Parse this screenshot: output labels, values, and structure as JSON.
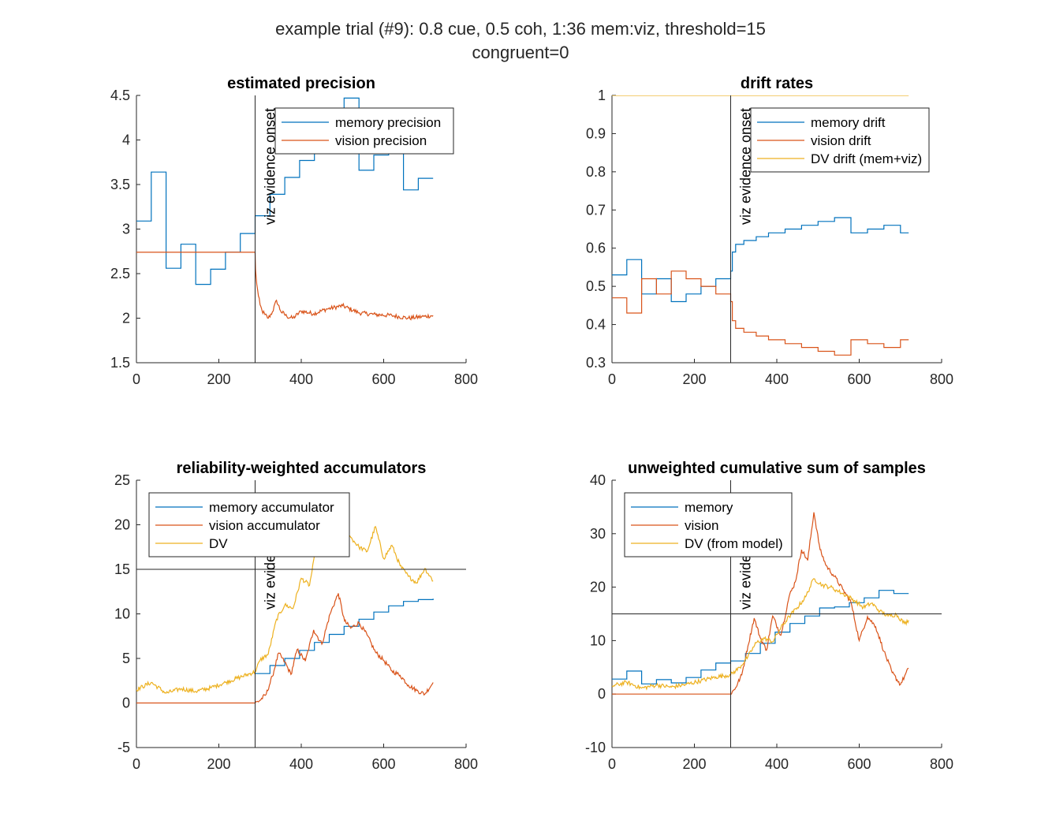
{
  "figure": {
    "title_line1": "example trial (#9): 0.8 cue, 0.5 coh, 1:36 mem:viz, threshold=15",
    "title_line2": "congruent=0"
  },
  "colors": {
    "memory": "#0072BD",
    "vision": "#D95319",
    "dv": "#EDB120",
    "axis": "#262626",
    "ref": "#262626"
  },
  "chart_data": [
    {
      "type": "line",
      "title": "estimated precision",
      "xlim": [
        0,
        800
      ],
      "ylim": [
        1.5,
        4.5
      ],
      "xticks": [
        0,
        200,
        400,
        600,
        800
      ],
      "yticks": [
        1.5,
        2,
        2.5,
        3,
        3.5,
        4,
        4.5
      ],
      "ytick_labels": [
        "1.5",
        "2",
        "2.5",
        "3",
        "3.5",
        "4",
        "4.5"
      ],
      "vline": {
        "x": 288,
        "label": "viz evidence onset"
      },
      "legend": {
        "position": "top-right",
        "entries": [
          "memory precision",
          "vision precision"
        ]
      },
      "series": [
        {
          "name": "memory precision",
          "color_key": "memory",
          "style": "step",
          "x": [
            0,
            36,
            72,
            108,
            144,
            180,
            216,
            252,
            288,
            324,
            360,
            396,
            432,
            468,
            504,
            540,
            576,
            612,
            648,
            684,
            720
          ],
          "y": [
            3.09,
            3.64,
            2.56,
            2.83,
            2.38,
            2.55,
            2.74,
            2.95,
            3.15,
            3.39,
            3.58,
            3.77,
            3.97,
            4.1,
            4.47,
            3.66,
            3.83,
            4.0,
            3.44,
            3.57,
            3.57
          ]
        },
        {
          "name": "vision precision",
          "color_key": "vision",
          "style": "noisy",
          "x": [
            0,
            288,
            289,
            292,
            296,
            300,
            305,
            312,
            320,
            330,
            340,
            350,
            365,
            380,
            400,
            430,
            460,
            500,
            540,
            580,
            620,
            660,
            700,
            720
          ],
          "y": [
            2.74,
            2.74,
            2.55,
            2.38,
            2.25,
            2.15,
            2.08,
            2.04,
            2.0,
            2.07,
            2.2,
            2.08,
            2.02,
            2.0,
            2.08,
            2.05,
            2.1,
            2.14,
            2.06,
            2.04,
            2.03,
            2.0,
            2.02,
            2.03
          ]
        }
      ]
    },
    {
      "type": "line",
      "title": "drift rates",
      "xlim": [
        0,
        800
      ],
      "ylim": [
        0.3,
        1
      ],
      "xticks": [
        0,
        200,
        400,
        600,
        800
      ],
      "yticks": [
        0.3,
        0.4,
        0.5,
        0.6,
        0.7,
        0.8,
        0.9,
        1
      ],
      "ytick_labels": [
        "0.3",
        "0.4",
        "0.5",
        "0.6",
        "0.7",
        "0.8",
        "0.9",
        "1"
      ],
      "vline": {
        "x": 288,
        "label": "viz evidence onset"
      },
      "legend": {
        "position": "top-right",
        "entries": [
          "memory drift",
          "vision drift",
          "DV drift (mem+viz)"
        ]
      },
      "series": [
        {
          "name": "memory drift",
          "color_key": "memory",
          "style": "step",
          "x": [
            0,
            36,
            72,
            108,
            144,
            180,
            216,
            252,
            288,
            292,
            300,
            320,
            350,
            380,
            420,
            460,
            500,
            540,
            580,
            620,
            660,
            700,
            720
          ],
          "y": [
            0.53,
            0.57,
            0.48,
            0.52,
            0.46,
            0.48,
            0.5,
            0.52,
            0.54,
            0.59,
            0.61,
            0.62,
            0.63,
            0.64,
            0.65,
            0.66,
            0.67,
            0.68,
            0.64,
            0.65,
            0.66,
            0.64,
            0.64
          ]
        },
        {
          "name": "vision drift",
          "color_key": "vision",
          "style": "step",
          "x": [
            0,
            36,
            72,
            108,
            144,
            180,
            216,
            252,
            288,
            292,
            300,
            320,
            350,
            380,
            420,
            460,
            500,
            540,
            580,
            620,
            660,
            700,
            720
          ],
          "y": [
            0.47,
            0.43,
            0.52,
            0.48,
            0.54,
            0.52,
            0.5,
            0.48,
            0.46,
            0.41,
            0.39,
            0.38,
            0.37,
            0.36,
            0.35,
            0.34,
            0.33,
            0.32,
            0.36,
            0.35,
            0.34,
            0.36,
            0.36
          ]
        },
        {
          "name": "DV drift (mem+viz)",
          "color_key": "dv",
          "style": "step",
          "x": [
            0,
            720
          ],
          "y": [
            1,
            1
          ]
        }
      ]
    },
    {
      "type": "line",
      "title": "reliability-weighted accumulators",
      "xlim": [
        0,
        800
      ],
      "ylim": [
        -5,
        25
      ],
      "xticks": [
        0,
        200,
        400,
        600,
        800
      ],
      "yticks": [
        -5,
        0,
        5,
        10,
        15,
        20,
        25
      ],
      "ytick_labels": [
        "-5",
        "0",
        "5",
        "10",
        "15",
        "20",
        "25"
      ],
      "vline": {
        "x": 288,
        "label": "viz evidence onset"
      },
      "hline": {
        "y": 15
      },
      "legend": {
        "position": "top-left",
        "entries": [
          "memory accumulator",
          "vision accumulator",
          "DV"
        ]
      },
      "series": [
        {
          "name": "memory accumulator",
          "color_key": "memory",
          "style": "step",
          "x": [
            288,
            324,
            360,
            396,
            432,
            468,
            504,
            540,
            576,
            612,
            648,
            684,
            720
          ],
          "y": [
            3.3,
            4.2,
            5.0,
            5.9,
            6.8,
            7.7,
            8.6,
            9.4,
            10.2,
            10.9,
            11.4,
            11.6,
            11.7
          ]
        },
        {
          "name": "vision accumulator",
          "color_key": "vision",
          "style": "noisy",
          "x": [
            0,
            288,
            300,
            315,
            330,
            345,
            360,
            375,
            390,
            410,
            430,
            450,
            470,
            490,
            505,
            520,
            540,
            560,
            580,
            600,
            620,
            640,
            660,
            680,
            700,
            720
          ],
          "y": [
            0,
            0,
            0.3,
            1.0,
            3.0,
            5.6,
            4.6,
            3.2,
            6.0,
            4.7,
            8.2,
            6.6,
            10.0,
            12.3,
            9.2,
            8.4,
            9.0,
            7.6,
            5.7,
            4.8,
            3.6,
            3.1,
            2.0,
            1.4,
            1.0,
            2.3
          ]
        },
        {
          "name": "DV",
          "color_key": "dv",
          "style": "noisy",
          "x": [
            0,
            36,
            72,
            108,
            144,
            180,
            216,
            252,
            288,
            300,
            320,
            340,
            360,
            380,
            400,
            420,
            440,
            460,
            480,
            500,
            520,
            540,
            560,
            580,
            600,
            620,
            640,
            660,
            680,
            700,
            720
          ],
          "y": [
            1.5,
            2.3,
            1.1,
            1.6,
            1.3,
            1.7,
            2.3,
            2.9,
            3.5,
            4.8,
            5.5,
            9.4,
            11.0,
            10.6,
            14.0,
            13.2,
            18.4,
            17.5,
            21.4,
            19.6,
            18.6,
            17.5,
            17.0,
            19.8,
            16.2,
            17.7,
            15.4,
            14.2,
            13.5,
            15.1,
            13.7
          ]
        }
      ]
    },
    {
      "type": "line",
      "title": "unweighted cumulative sum of samples",
      "xlim": [
        0,
        800
      ],
      "ylim": [
        -10,
        40
      ],
      "xticks": [
        0,
        200,
        400,
        600,
        800
      ],
      "yticks": [
        -10,
        0,
        10,
        20,
        30,
        40
      ],
      "ytick_labels": [
        "-10",
        "0",
        "10",
        "20",
        "30",
        "40"
      ],
      "vline": {
        "x": 288,
        "label": "viz evidence onset"
      },
      "hline": {
        "y": 15
      },
      "legend": {
        "position": "top-left",
        "entries": [
          "memory",
          "vision",
          "DV (from model)"
        ]
      },
      "series": [
        {
          "name": "memory",
          "color_key": "memory",
          "style": "step",
          "x": [
            0,
            36,
            72,
            108,
            144,
            180,
            216,
            252,
            288,
            324,
            360,
            396,
            432,
            468,
            504,
            540,
            576,
            612,
            648,
            684,
            720
          ],
          "y": [
            2.8,
            4.3,
            1.9,
            2.7,
            2.1,
            3.1,
            4.5,
            5.8,
            6.2,
            7.6,
            9.5,
            11.6,
            13.2,
            14.6,
            16.1,
            16.3,
            17.1,
            18.0,
            19.4,
            18.8,
            18.8
          ]
        },
        {
          "name": "vision",
          "color_key": "vision",
          "style": "noisy",
          "x": [
            0,
            288,
            300,
            315,
            330,
            345,
            360,
            375,
            390,
            410,
            430,
            445,
            460,
            475,
            490,
            505,
            520,
            540,
            560,
            580,
            600,
            620,
            640,
            660,
            680,
            700,
            720
          ],
          "y": [
            0,
            0,
            1.2,
            3.6,
            9.0,
            14.2,
            10.5,
            8.2,
            14.6,
            11.0,
            18.3,
            21.0,
            27.0,
            25.0,
            34.0,
            27.0,
            24.0,
            22.0,
            19.6,
            17.2,
            10.0,
            14.5,
            12.6,
            8.0,
            4.0,
            1.8,
            4.8
          ]
        },
        {
          "name": "DV (from model)",
          "color_key": "dv",
          "style": "noisy",
          "x": [
            0,
            36,
            72,
            108,
            144,
            180,
            216,
            252,
            288,
            310,
            330,
            350,
            370,
            390,
            410,
            430,
            450,
            470,
            490,
            510,
            530,
            550,
            570,
            590,
            610,
            630,
            650,
            670,
            690,
            710,
            720
          ],
          "y": [
            1.5,
            2.2,
            1.1,
            1.7,
            1.3,
            1.8,
            2.5,
            3.2,
            3.6,
            5.0,
            7.0,
            9.6,
            10.4,
            9.8,
            12.4,
            14.5,
            16.2,
            18.2,
            21.6,
            20.4,
            20.0,
            19.2,
            18.4,
            17.4,
            16.2,
            17.0,
            15.5,
            14.6,
            14.9,
            13.2,
            13.8
          ]
        }
      ]
    }
  ]
}
